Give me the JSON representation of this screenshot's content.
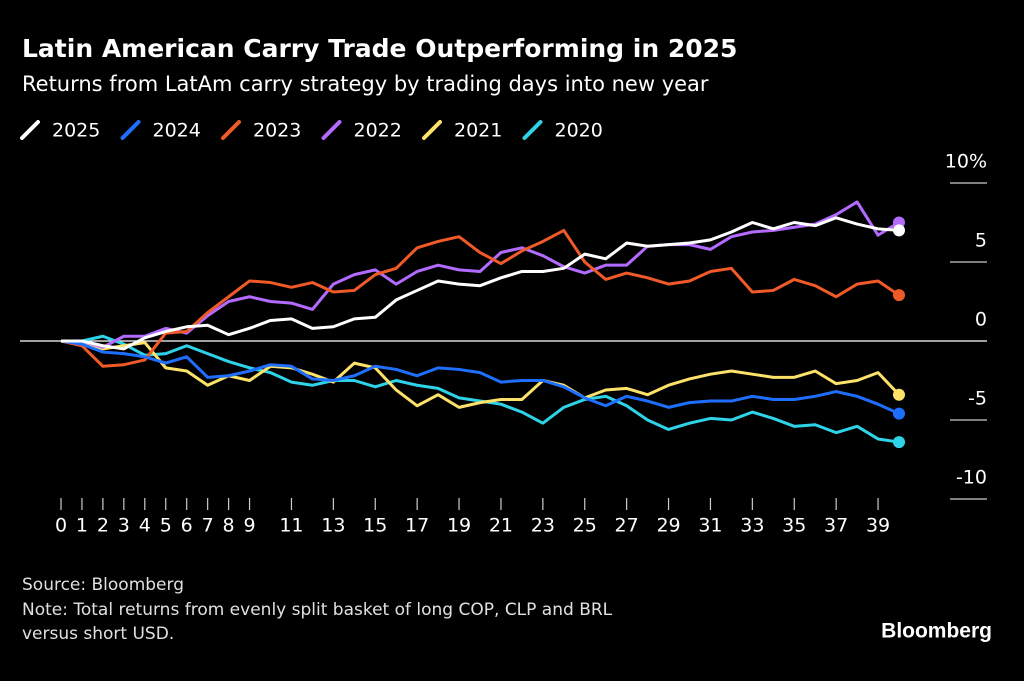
{
  "chart_data": {
    "type": "line",
    "title": "Latin American Carry Trade Outperforming in 2025",
    "subtitle": "Returns from LatAm carry strategy by trading days into new year",
    "x": [
      0,
      1,
      2,
      3,
      4,
      5,
      6,
      7,
      8,
      9,
      10,
      11,
      12,
      13,
      14,
      15,
      16,
      17,
      18,
      19,
      20,
      21,
      22,
      23,
      24,
      25,
      26,
      27,
      28,
      29,
      30,
      31,
      32,
      33,
      34,
      35,
      36,
      37,
      38,
      39,
      40
    ],
    "xlim": [
      0,
      40
    ],
    "xticks": [
      0,
      1,
      2,
      3,
      4,
      5,
      6,
      7,
      8,
      9,
      11,
      13,
      15,
      17,
      19,
      21,
      23,
      25,
      27,
      29,
      31,
      33,
      35,
      37,
      39
    ],
    "ylim": [
      -10,
      10
    ],
    "yticks": [
      {
        "value": 10,
        "label": "10%"
      },
      5,
      0,
      -5,
      -10
    ],
    "series": [
      {
        "name": "2025",
        "color": "#ffffff",
        "values": [
          0,
          0,
          -0.3,
          -0.5,
          0.2,
          0.6,
          0.9,
          1.0,
          0.4,
          0.8,
          1.3,
          1.4,
          0.8,
          0.9,
          1.4,
          1.5,
          2.6,
          3.2,
          3.8,
          3.6,
          3.5,
          4.0,
          4.4,
          4.4,
          4.6,
          5.5,
          5.2,
          6.2,
          6.0,
          6.1,
          6.2,
          6.4,
          6.9,
          7.5,
          7.1,
          7.5,
          7.3,
          7.8,
          7.4,
          7.1,
          7.0
        ]
      },
      {
        "name": "2024",
        "color": "#1f6fff",
        "values": [
          0,
          -0.2,
          -0.7,
          -0.8,
          -1.0,
          -1.4,
          -1.0,
          -2.3,
          -2.2,
          -1.9,
          -1.5,
          -1.6,
          -2.4,
          -2.5,
          -2.2,
          -1.6,
          -1.8,
          -2.2,
          -1.7,
          -1.8,
          -2.0,
          -2.6,
          -2.5,
          -2.5,
          -2.9,
          -3.6,
          -4.1,
          -3.5,
          -3.8,
          -4.2,
          -3.9,
          -3.8,
          -3.8,
          -3.5,
          -3.7,
          -3.7,
          -3.5,
          -3.2,
          -3.5,
          -4.0,
          -4.6
        ]
      },
      {
        "name": "2023",
        "color": "#f05a28",
        "values": [
          0,
          -0.3,
          -1.6,
          -1.5,
          -1.2,
          0.5,
          0.6,
          1.8,
          2.8,
          3.8,
          3.7,
          3.4,
          3.7,
          3.1,
          3.2,
          4.2,
          4.6,
          5.9,
          6.3,
          6.6,
          5.6,
          4.9,
          5.7,
          6.3,
          7.0,
          5.0,
          3.9,
          4.3,
          4.0,
          3.6,
          3.8,
          4.4,
          4.6,
          3.1,
          3.2,
          3.9,
          3.5,
          2.8,
          3.6,
          3.8,
          2.9
        ]
      },
      {
        "name": "2022",
        "color": "#b36bff",
        "values": [
          0,
          0,
          -0.4,
          0.3,
          0.3,
          0.8,
          0.5,
          1.6,
          2.5,
          2.8,
          2.5,
          2.4,
          2.0,
          3.6,
          4.2,
          4.5,
          3.6,
          4.4,
          4.8,
          4.5,
          4.4,
          5.6,
          5.9,
          5.4,
          4.7,
          4.3,
          4.8,
          4.8,
          6.0,
          6.1,
          6.1,
          5.8,
          6.6,
          6.9,
          7.0,
          7.2,
          7.4,
          8.0,
          8.8,
          6.7,
          7.5
        ]
      },
      {
        "name": "2021",
        "color": "#fde26a",
        "values": [
          0,
          -0.2,
          -0.5,
          -0.3,
          -0.1,
          -1.7,
          -1.9,
          -2.8,
          -2.2,
          -2.5,
          -1.6,
          -1.7,
          -2.1,
          -2.6,
          -1.4,
          -1.7,
          -3.1,
          -4.1,
          -3.4,
          -4.2,
          -3.9,
          -3.7,
          -3.7,
          -2.5,
          -2.8,
          -3.6,
          -3.1,
          -3.0,
          -3.4,
          -2.8,
          -2.4,
          -2.1,
          -1.9,
          -2.1,
          -2.3,
          -2.3,
          -1.9,
          -2.7,
          -2.5,
          -2.0,
          -3.4
        ]
      },
      {
        "name": "2020",
        "color": "#2fd3e8",
        "values": [
          0,
          0,
          0.3,
          -0.2,
          -0.9,
          -0.8,
          -0.3,
          -0.8,
          -1.3,
          -1.7,
          -2.0,
          -2.6,
          -2.8,
          -2.5,
          -2.5,
          -2.9,
          -2.5,
          -2.8,
          -3.0,
          -3.6,
          -3.8,
          -4.0,
          -4.5,
          -5.2,
          -4.2,
          -3.7,
          -3.5,
          -4.1,
          -5.0,
          -5.6,
          -5.2,
          -4.9,
          -5.0,
          -4.5,
          -4.9,
          -5.4,
          -5.3,
          -5.8,
          -5.4,
          -6.2,
          -6.4
        ]
      }
    ],
    "source": "Source: Bloomberg",
    "note": [
      "Note: Total returns from evenly split basket of long COP, CLP and BRL",
      "versus short USD."
    ],
    "brand": "Bloomberg"
  }
}
